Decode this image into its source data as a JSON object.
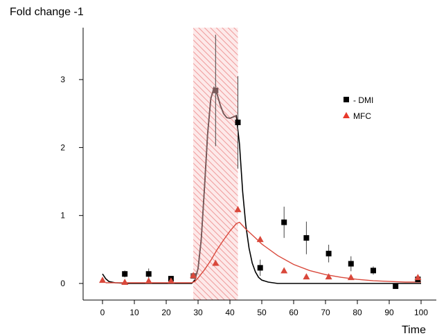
{
  "chart_data": {
    "type": "scatter",
    "ylabel": "Fold change -1",
    "xlabel": "Time",
    "xlim": [
      -6,
      103
    ],
    "ylim": [
      -0.25,
      3.75
    ],
    "x_ticks": [
      0,
      10,
      20,
      30,
      40,
      50,
      60,
      70,
      80,
      90,
      100
    ],
    "y_ticks": [
      0,
      1,
      2,
      3
    ],
    "grid": false,
    "legend_position": "right",
    "shaded_region": {
      "x_start": 28.5,
      "x_end": 42.5,
      "color": "#f0a0a0"
    },
    "series": [
      {
        "name": "- DMI",
        "marker": "square",
        "color": "#000000",
        "points": [
          {
            "x": 7,
            "y": 0.14,
            "err": 0.05
          },
          {
            "x": 14.5,
            "y": 0.14,
            "err": 0.08
          },
          {
            "x": 21.5,
            "y": 0.07,
            "err": 0.04
          },
          {
            "x": 28.5,
            "y": 0.11,
            "err": 0.04
          },
          {
            "x": 35.5,
            "y": 2.84,
            "err": 0.82
          },
          {
            "x": 42.5,
            "y": 2.37,
            "err": 0.68
          },
          {
            "x": 49.5,
            "y": 0.23,
            "err": 0.12
          },
          {
            "x": 57,
            "y": 0.9,
            "err": 0.23
          },
          {
            "x": 64,
            "y": 0.67,
            "err": 0.24
          },
          {
            "x": 71,
            "y": 0.44,
            "err": 0.13
          },
          {
            "x": 78,
            "y": 0.29,
            "err": 0.11
          },
          {
            "x": 85,
            "y": 0.19,
            "err": 0.06
          },
          {
            "x": 92,
            "y": -0.04,
            "err": 0.02
          },
          {
            "x": 99,
            "y": 0.06,
            "err": 0.03
          }
        ],
        "fit_curve": [
          [
            0,
            0.14
          ],
          [
            1,
            0.07
          ],
          [
            2,
            0.03
          ],
          [
            4,
            0.01
          ],
          [
            8,
            0.0
          ],
          [
            28,
            0.0
          ],
          [
            29,
            0.05
          ],
          [
            30,
            0.22
          ],
          [
            31,
            0.65
          ],
          [
            32,
            1.4
          ],
          [
            33,
            2.2
          ],
          [
            34,
            2.72
          ],
          [
            35,
            2.88
          ],
          [
            36,
            2.78
          ],
          [
            37,
            2.62
          ],
          [
            38,
            2.5
          ],
          [
            39,
            2.44
          ],
          [
            40,
            2.43
          ],
          [
            41,
            2.45
          ],
          [
            42,
            2.47
          ],
          [
            43,
            2.05
          ],
          [
            44,
            1.35
          ],
          [
            45,
            0.85
          ],
          [
            46,
            0.52
          ],
          [
            47,
            0.3
          ],
          [
            48,
            0.17
          ],
          [
            49,
            0.09
          ],
          [
            50,
            0.05
          ],
          [
            52,
            0.02
          ],
          [
            55,
            0.0
          ],
          [
            100,
            0.0
          ]
        ]
      },
      {
        "name": "MFC",
        "marker": "triangle",
        "color": "#d9483b",
        "points": [
          {
            "x": 0,
            "y": 0.05
          },
          {
            "x": 7,
            "y": 0.02
          },
          {
            "x": 14.5,
            "y": 0.04
          },
          {
            "x": 21.5,
            "y": 0.04
          },
          {
            "x": 28.5,
            "y": 0.12
          },
          {
            "x": 35.5,
            "y": 0.3
          },
          {
            "x": 42.5,
            "y": 1.09
          },
          {
            "x": 49.5,
            "y": 0.65
          },
          {
            "x": 57,
            "y": 0.19
          },
          {
            "x": 64,
            "y": 0.1
          },
          {
            "x": 71,
            "y": 0.1
          },
          {
            "x": 78,
            "y": 0.09
          },
          {
            "x": 99,
            "y": 0.09
          }
        ],
        "fit_curve": [
          [
            1,
            0.01
          ],
          [
            10,
            0.01
          ],
          [
            20,
            0.01
          ],
          [
            28,
            0.01
          ],
          [
            29,
            0.03
          ],
          [
            30,
            0.08
          ],
          [
            32,
            0.2
          ],
          [
            34,
            0.34
          ],
          [
            36,
            0.5
          ],
          [
            38,
            0.64
          ],
          [
            40,
            0.77
          ],
          [
            42,
            0.88
          ],
          [
            43,
            0.9
          ],
          [
            45,
            0.8
          ],
          [
            48,
            0.67
          ],
          [
            50,
            0.58
          ],
          [
            55,
            0.41
          ],
          [
            60,
            0.28
          ],
          [
            65,
            0.19
          ],
          [
            70,
            0.13
          ],
          [
            75,
            0.09
          ],
          [
            80,
            0.06
          ],
          [
            85,
            0.04
          ],
          [
            90,
            0.03
          ],
          [
            95,
            0.02
          ],
          [
            100,
            0.02
          ]
        ]
      }
    ]
  }
}
